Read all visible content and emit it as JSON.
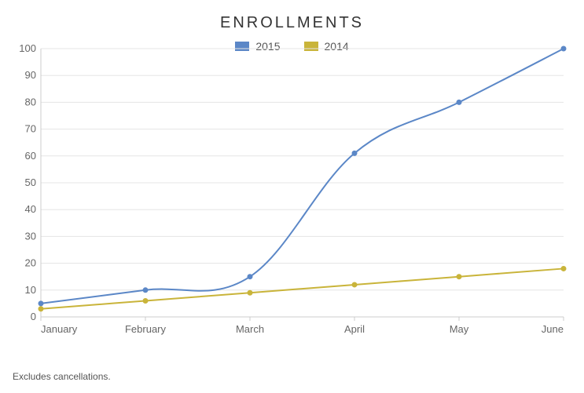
{
  "title": "ENROLLMENTS",
  "title_fontsize": 20,
  "title_letter_spacing": 3,
  "footnote": "Excludes cancellations.",
  "chart": {
    "type": "line",
    "background_color": "#ffffff",
    "grid_color": "#e5e5e5",
    "axis_color": "#cccccc",
    "axis_label_color": "#666666",
    "axis_fontsize": 13,
    "xlim_labels": [
      "January",
      "February",
      "March",
      "April",
      "May",
      "June"
    ],
    "ylim": [
      0,
      100
    ],
    "ytick_step": 10,
    "line_width": 2,
    "marker_radius": 3.5,
    "curve_smoothing": 0.18,
    "series": [
      {
        "name": "2015",
        "color": "#5b87c7",
        "values": [
          5,
          10,
          15,
          61,
          80,
          100
        ]
      },
      {
        "name": "2014",
        "color": "#c9b43a",
        "values": [
          3,
          6,
          9,
          12,
          15,
          18
        ]
      }
    ],
    "legend": {
      "position": "bottom-center",
      "fontsize": 14,
      "swatch_w": 18,
      "swatch_h": 12
    }
  }
}
